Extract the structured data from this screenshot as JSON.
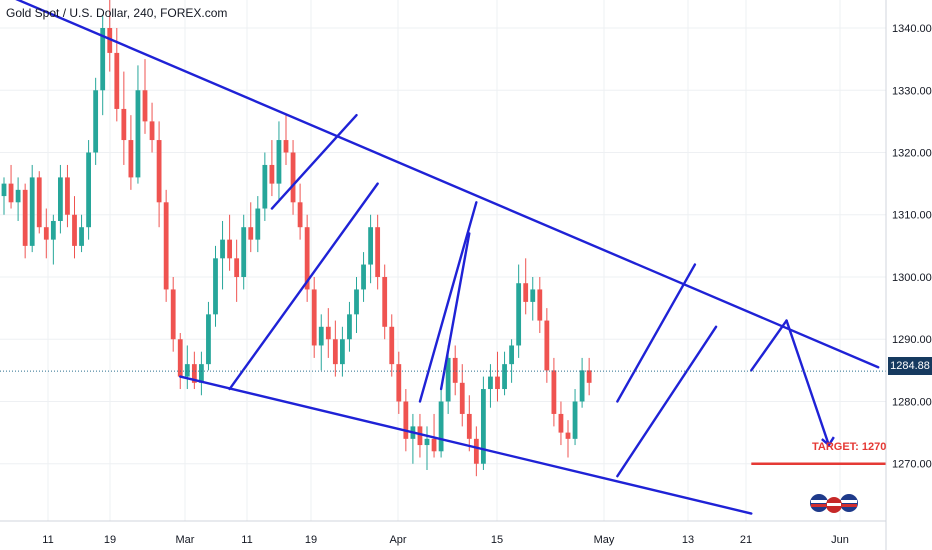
{
  "title": "Gold Spot / U.S. Dollar, 240, FOREX.com",
  "current_price": "1284.88",
  "target_label": "TARGET: 1270",
  "colors": {
    "up": "#26a69a",
    "down": "#ef5350",
    "trendline": "#1f22d6",
    "target_line": "#e53935",
    "price_tag_bg": "#163a5f",
    "price_line": "#2a6f8f",
    "grid": "#eef0f3"
  },
  "chart_data": {
    "type": "candlestick",
    "y_axis_ticks": [
      1270,
      1280,
      1290,
      1300,
      1310,
      1320,
      1330,
      1340
    ],
    "ylim": [
      1260.8,
      1344.5
    ],
    "x_axis_labels": [
      "11",
      "19",
      "Mar",
      "11",
      "19",
      "Apr",
      "15",
      "May",
      "13",
      "21",
      "Jun"
    ],
    "annotations": {
      "wedge_upper": [
        [
          1,
          1345
        ],
        [
          124,
          1285.5
        ]
      ],
      "wedge_lower": [
        [
          25,
          1284
        ],
        [
          106,
          1262
        ]
      ],
      "channel_1": [
        [
          32,
          1282
        ],
        [
          53,
          1315
        ]
      ],
      "channel_2": [
        [
          38,
          1311
        ],
        [
          50,
          1326
        ]
      ],
      "channel_3": [
        [
          59,
          1280
        ],
        [
          67,
          1312
        ]
      ],
      "channel_4": [
        [
          62,
          1282
        ],
        [
          66,
          1307
        ]
      ],
      "channel_5": [
        [
          87,
          1268
        ],
        [
          101,
          1292
        ]
      ],
      "channel_6": [
        [
          87,
          1280
        ],
        [
          98,
          1302
        ]
      ],
      "projection_up": [
        [
          106,
          1285
        ],
        [
          111,
          1293
        ]
      ],
      "projection_down": [
        [
          111,
          1293
        ],
        [
          117,
          1273
        ]
      ],
      "target_line": 1270,
      "current_price": 1284.88
    },
    "series": [
      {
        "values": [
          [
            1313,
            1316,
            1310,
            1315
          ],
          [
            1315,
            1318,
            1311,
            1312
          ],
          [
            1312,
            1316,
            1309,
            1314
          ],
          [
            1314,
            1315,
            1303,
            1305
          ],
          [
            1305,
            1318,
            1304,
            1316
          ],
          [
            1316,
            1317,
            1307,
            1308
          ],
          [
            1308,
            1311,
            1303,
            1306
          ],
          [
            1306,
            1310,
            1302,
            1309
          ],
          [
            1309,
            1318,
            1307,
            1316
          ],
          [
            1316,
            1318,
            1308,
            1310
          ],
          [
            1310,
            1313,
            1303,
            1305
          ],
          [
            1305,
            1310,
            1304,
            1308
          ],
          [
            1308,
            1322,
            1306,
            1320
          ],
          [
            1320,
            1332,
            1318,
            1330
          ],
          [
            1330,
            1342,
            1326,
            1340
          ],
          [
            1340,
            1345,
            1333,
            1336
          ],
          [
            1336,
            1340,
            1325,
            1327
          ],
          [
            1327,
            1333,
            1318,
            1322
          ],
          [
            1322,
            1326,
            1314,
            1316
          ],
          [
            1316,
            1334,
            1315,
            1330
          ],
          [
            1330,
            1335,
            1323,
            1325
          ],
          [
            1325,
            1328,
            1320,
            1322
          ],
          [
            1322,
            1325,
            1308,
            1312
          ],
          [
            1312,
            1314,
            1296,
            1298
          ],
          [
            1298,
            1300,
            1288,
            1290
          ],
          [
            1290,
            1291,
            1282,
            1284
          ],
          [
            1284,
            1289,
            1282,
            1286
          ],
          [
            1286,
            1288,
            1282,
            1283
          ],
          [
            1283,
            1288,
            1281,
            1286
          ],
          [
            1286,
            1296,
            1285,
            1294
          ],
          [
            1294,
            1305,
            1292,
            1303
          ],
          [
            1303,
            1309,
            1298,
            1306
          ],
          [
            1306,
            1310,
            1301,
            1303
          ],
          [
            1303,
            1306,
            1296,
            1300
          ],
          [
            1300,
            1310,
            1298,
            1308
          ],
          [
            1308,
            1312,
            1304,
            1306
          ],
          [
            1306,
            1313,
            1304,
            1311
          ],
          [
            1311,
            1320,
            1309,
            1318
          ],
          [
            1318,
            1322,
            1313,
            1315
          ],
          [
            1315,
            1325,
            1312,
            1322
          ],
          [
            1322,
            1326,
            1318,
            1320
          ],
          [
            1320,
            1322,
            1310,
            1312
          ],
          [
            1312,
            1315,
            1306,
            1308
          ],
          [
            1308,
            1310,
            1296,
            1298
          ],
          [
            1298,
            1300,
            1287,
            1289
          ],
          [
            1289,
            1294,
            1285,
            1292
          ],
          [
            1292,
            1295,
            1287,
            1290
          ],
          [
            1290,
            1293,
            1284,
            1286
          ],
          [
            1286,
            1292,
            1284,
            1290
          ],
          [
            1290,
            1296,
            1288,
            1294
          ],
          [
            1294,
            1300,
            1291,
            1298
          ],
          [
            1298,
            1304,
            1296,
            1302
          ],
          [
            1302,
            1310,
            1299,
            1308
          ],
          [
            1308,
            1310,
            1298,
            1300
          ],
          [
            1300,
            1302,
            1290,
            1292
          ],
          [
            1292,
            1294,
            1284,
            1286
          ],
          [
            1286,
            1288,
            1278,
            1280
          ],
          [
            1280,
            1282,
            1272,
            1274
          ],
          [
            1274,
            1278,
            1270,
            1276
          ],
          [
            1276,
            1278,
            1271,
            1273
          ],
          [
            1273,
            1276,
            1269,
            1274
          ],
          [
            1274,
            1278,
            1271,
            1272
          ],
          [
            1272,
            1282,
            1271,
            1280
          ],
          [
            1280,
            1289,
            1278,
            1287
          ],
          [
            1287,
            1289,
            1281,
            1283
          ],
          [
            1283,
            1286,
            1276,
            1278
          ],
          [
            1278,
            1281,
            1272,
            1274
          ],
          [
            1274,
            1276,
            1268,
            1270
          ],
          [
            1270,
            1284,
            1269,
            1282
          ],
          [
            1282,
            1286,
            1279,
            1284
          ],
          [
            1284,
            1288,
            1280,
            1282
          ],
          [
            1282,
            1288,
            1281,
            1286
          ],
          [
            1286,
            1290,
            1283,
            1289
          ],
          [
            1289,
            1302,
            1287,
            1299
          ],
          [
            1299,
            1303,
            1294,
            1296
          ],
          [
            1296,
            1300,
            1293,
            1298
          ],
          [
            1298,
            1300,
            1291,
            1293
          ],
          [
            1293,
            1295,
            1283,
            1285
          ],
          [
            1285,
            1287,
            1276,
            1278
          ],
          [
            1278,
            1280,
            1273,
            1275
          ],
          [
            1275,
            1277,
            1271,
            1274
          ],
          [
            1274,
            1282,
            1273,
            1280
          ],
          [
            1280,
            1287,
            1279,
            1285
          ],
          [
            1285,
            1287,
            1281,
            1283
          ]
        ]
      }
    ]
  }
}
